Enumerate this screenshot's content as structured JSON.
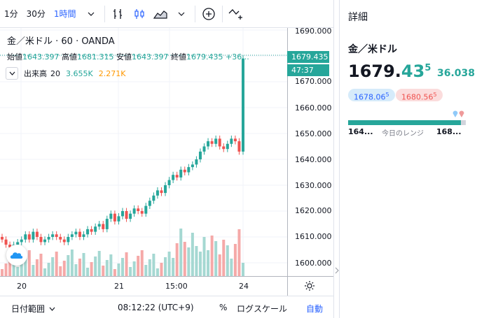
{
  "toolbar": {
    "intervals": [
      "1分",
      "30分",
      "1時間"
    ],
    "active_interval": "1時間"
  },
  "legend": {
    "title": "金／米ドル · 60 · OANDA",
    "open_label": "始値",
    "open": "1643.397",
    "high_label": "高値",
    "high": "1681.315",
    "low_label": "安値",
    "low": "1643.397",
    "close_label": "終値",
    "close": "1679.435",
    "change": "+36..."
  },
  "volume": {
    "label": "出来高",
    "period": "20",
    "value1": "3.655K",
    "value2": "2.271K"
  },
  "price_scale": {
    "ticks": [
      "1690.000",
      "1680.000",
      "1670.000",
      "1660.000",
      "1650.000",
      "1640.000",
      "1630.000",
      "1620.000",
      "1610.000",
      "1600.000"
    ],
    "current_price": "1679.435",
    "countdown": "47:37"
  },
  "time_axis": {
    "ticks": [
      "20",
      "21",
      "15:00",
      "24"
    ]
  },
  "bottombar": {
    "date_range": "日付範囲",
    "clock": "08:12:22 (UTC+9)",
    "percent": "%",
    "log": "ログスケール",
    "auto": "自動"
  },
  "details": {
    "header": "詳細",
    "symbol": "金／米ドル",
    "price_main": "1679.",
    "price_green": "43",
    "price_sup": "5",
    "change": "36.038",
    "bid": "1678.06",
    "bid_sup": "5",
    "ask": "1680.56",
    "ask_sup": "5",
    "range_low": "164...",
    "range_label": "今日のレンジ",
    "range_high": "168...",
    "range_position": 0.96
  },
  "colors": {
    "up": "#26a69a",
    "down": "#ef5350",
    "accent": "#2962ff"
  }
}
